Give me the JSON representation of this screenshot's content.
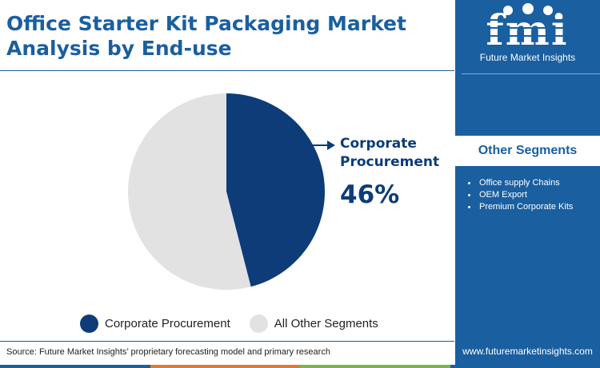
{
  "title": "Office Starter Kit Packaging Market Analysis by End-use",
  "chart_data": {
    "type": "pie",
    "categories": [
      "Corporate Procurement",
      "All Other Segments"
    ],
    "values": [
      46,
      54
    ],
    "colors": [
      "#0d3c78",
      "#e2e2e2"
    ],
    "legend_position": "bottom"
  },
  "callout": {
    "label": "Corporate Procurement",
    "value": "46%"
  },
  "legend": [
    {
      "label": "Corporate Procurement",
      "color": "#0d3c78"
    },
    {
      "label": "All Other Segments",
      "color": "#e2e2e2"
    }
  ],
  "source": "Source: Future Market Insights’ proprietary forecasting model and primary research",
  "sidebar": {
    "logo_letters": "fmi",
    "logo_text": "Future Market Insights",
    "segments_title": "Other Segments",
    "segments": [
      "Office supply Chains",
      "OEM Export",
      "Premium Corporate Kits"
    ],
    "website": "www.futuremarketinsights.com"
  },
  "colors": {
    "brand_blue": "#1a5fa0",
    "dark_blue": "#0d3c78",
    "strip": [
      "#1a5fa0",
      "#e07b2e",
      "#7ab648",
      "#1a5fa0"
    ]
  }
}
